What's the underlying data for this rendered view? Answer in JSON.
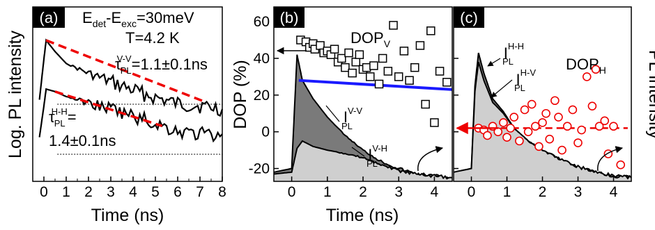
{
  "chart_data": [
    {
      "panel": "(a)",
      "type": "line",
      "xlabel": "Time (ns)",
      "ylabel": "Log. PL intensity",
      "xlim": [
        -0.5,
        8
      ],
      "xticks": [
        0,
        1,
        2,
        3,
        4,
        5,
        6,
        7,
        8
      ],
      "y_scale": "log",
      "annotations": [
        "E",
        "det",
        "-E",
        "exc",
        "=30meV",
        "T=4.2 K",
        "τ",
        "PL",
        "V-V",
        "=1.1±0.1ns",
        "τ",
        "PL",
        "H-H",
        "=",
        "1.4±0.1ns"
      ],
      "series": [
        {
          "name": "V-V",
          "style": "black solid",
          "x": [
            -0.2,
            0,
            0.1,
            0.5,
            1,
            2,
            3,
            4,
            5,
            6,
            7,
            8
          ],
          "log_intensity": [
            0.05,
            0.7,
            1.0,
            0.82,
            0.63,
            0.47,
            0.33,
            0.2,
            0.08,
            -0.02,
            -0.05,
            -0.1
          ]
        },
        {
          "name": "V-V fit",
          "style": "red dashed",
          "x": [
            0.1,
            7.2
          ],
          "log_intensity": [
            1.0,
            0.02
          ]
        },
        {
          "name": "H-H",
          "style": "black solid",
          "x": [
            -0.2,
            0,
            0.1,
            0.5,
            1,
            2,
            3,
            4,
            5,
            6,
            7,
            8
          ],
          "log_intensity": [
            -0.55,
            -0.05,
            0.22,
            0.18,
            0.1,
            0.0,
            -0.1,
            -0.22,
            -0.33,
            -0.45,
            -0.5,
            -0.5
          ]
        },
        {
          "name": "H-H fit",
          "style": "red dashed",
          "x": [
            0.5,
            5.3
          ],
          "log_intensity": [
            0.18,
            -0.37
          ]
        }
      ]
    },
    {
      "panel": "(b)",
      "type": "scatter",
      "xlabel": "Time (ns)",
      "ylabel": "DOP (%)",
      "xlim": [
        -0.5,
        4.5
      ],
      "ylim": [
        -27,
        68
      ],
      "xticks": [
        0,
        1,
        2,
        3,
        4
      ],
      "yticks": [
        -20,
        0,
        20,
        40,
        60
      ],
      "labels": {
        "dop": "DOP",
        "dop_sub": "V",
        "ivv": "I",
        "ivv_sup": "V-V",
        "ivv_sub": "PL",
        "ivh": "I",
        "ivh_sup": "V-H",
        "ivh_sub": "PL"
      },
      "series": [
        {
          "name": "DOP_V",
          "marker": "open square",
          "x": [
            0.25,
            0.4,
            0.5,
            0.6,
            0.65,
            0.8,
            0.9,
            1.0,
            1.1,
            1.2,
            1.3,
            1.4,
            1.5,
            1.6,
            1.7,
            1.8,
            1.9,
            2.0,
            2.1,
            2.2,
            2.3,
            2.45,
            2.55,
            2.7,
            2.85,
            3.0,
            3.15,
            3.3,
            3.45,
            3.6,
            3.75,
            3.9,
            4.0,
            4.15,
            4.35
          ],
          "y": [
            50,
            49,
            46,
            48,
            45,
            47,
            43,
            44,
            42,
            45,
            38,
            40,
            35,
            43,
            32,
            38,
            42,
            34,
            35,
            30,
            36,
            26,
            40,
            33,
            58,
            30,
            44,
            28,
            35,
            47,
            15,
            55,
            5,
            33,
            27
          ]
        },
        {
          "name": "DOP_V fit",
          "style": "blue solid",
          "x": [
            0.2,
            4.5
          ],
          "y": [
            28,
            23
          ]
        },
        {
          "name": "I_PL^V-V",
          "style": "dark grey fill",
          "x": [
            -0.5,
            0,
            0.15,
            0.3,
            0.6,
            1.0,
            1.5,
            2.0,
            2.5,
            3.0,
            3.5,
            4.0,
            4.5
          ],
          "y": [
            -22,
            -20,
            42,
            28,
            18,
            8,
            -2,
            -10,
            -16,
            -20,
            -23,
            -24,
            -25
          ]
        },
        {
          "name": "I_PL^V-H",
          "style": "light grey fill",
          "x": [
            -0.5,
            0,
            0.15,
            0.3,
            0.6,
            1.0,
            1.5,
            2.0,
            2.5,
            3.0,
            3.5,
            4.0,
            4.5
          ],
          "y": [
            -23,
            -22,
            -9,
            -5,
            -8,
            -10,
            -12,
            -14,
            -18,
            -21,
            -23,
            -24,
            -25
          ]
        }
      ]
    },
    {
      "panel": "(c)",
      "type": "scatter",
      "xlabel": "Time (ns)",
      "ylabel": "PL intensity",
      "xlim": [
        -0.5,
        4.5
      ],
      "ylim": [
        -27,
        68
      ],
      "xticks": [
        0,
        1,
        2,
        3,
        4
      ],
      "labels": {
        "dop": "DOP",
        "dop_sub": "H",
        "ihh": "I",
        "ihh_sup": "H-H",
        "ihh_sub": "PL",
        "ihv": "I",
        "ihv_sup": "H-V",
        "ihv_sub": "PL"
      },
      "series": [
        {
          "name": "DOP_H",
          "marker": "open circle red",
          "x": [
            0.2,
            0.35,
            0.45,
            0.6,
            0.75,
            0.9,
            1.0,
            1.1,
            1.2,
            1.35,
            1.5,
            1.6,
            1.7,
            1.8,
            1.9,
            2.0,
            2.1,
            2.2,
            2.35,
            2.45,
            2.55,
            2.7,
            2.85,
            3.0,
            3.1,
            3.25,
            3.4,
            3.5,
            3.6,
            3.75,
            3.85,
            4.0,
            4.2
          ],
          "y": [
            2,
            1,
            -2,
            3,
            0,
            5,
            -3,
            2,
            8,
            -5,
            12,
            0,
            15,
            3,
            -8,
            5,
            10,
            -4,
            17,
            8,
            -10,
            3,
            12,
            -6,
            1,
            30,
            14,
            34,
            3,
            6,
            -12,
            3,
            -18
          ]
        },
        {
          "name": "DOP_H fit",
          "style": "red dashed",
          "x": [
            0.2,
            4.4
          ],
          "y": [
            2,
            2
          ]
        },
        {
          "name": "I_PL^H-H",
          "style": "dark grey fill",
          "x": [
            -0.5,
            0,
            0.1,
            0.2,
            0.35,
            0.6,
            0.9,
            1.2,
            1.6,
            2.0,
            2.5,
            3.0,
            3.5,
            4.0,
            4.5
          ],
          "y": [
            -22,
            -20,
            25,
            43,
            32,
            18,
            11,
            2,
            -5,
            -10,
            -15,
            -19,
            -22,
            -24,
            -25
          ]
        },
        {
          "name": "I_PL^H-V",
          "style": "light grey fill",
          "x": [
            -0.5,
            0,
            0.1,
            0.2,
            0.35,
            0.6,
            0.9,
            1.2,
            1.6,
            2.0,
            2.5,
            3.0,
            3.5,
            4.0,
            4.5
          ],
          "y": [
            -22,
            -20,
            22,
            38,
            28,
            16,
            10,
            2,
            -5,
            -10,
            -15,
            -19,
            -22,
            -24,
            -25
          ]
        }
      ]
    }
  ]
}
